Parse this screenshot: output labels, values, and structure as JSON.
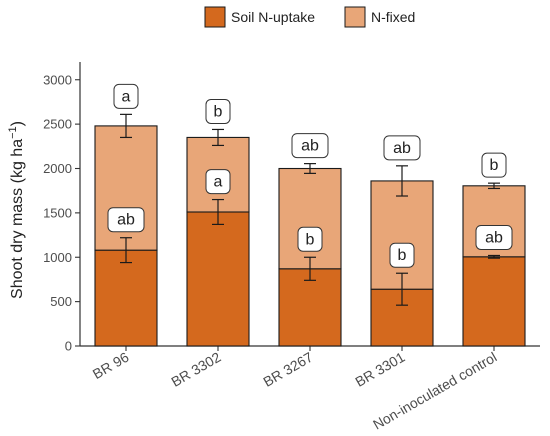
{
  "chart_data": {
    "type": "bar",
    "stacked": true,
    "categories": [
      "BR 96",
      "BR 3302",
      "BR 3267",
      "BR 3301",
      "Non-inoculated control"
    ],
    "ylabel": "Shoot dry mass (kg ha",
    "ylabel_sup": "−1",
    "ylabel_close": ")",
    "ylim": [
      0,
      3200
    ],
    "yticks": [
      0,
      500,
      1000,
      1500,
      2000,
      2500,
      3000
    ],
    "legend_position": "top",
    "series": [
      {
        "name": "Soil N-uptake",
        "color": "#d4691e",
        "values": [
          1080,
          1510,
          870,
          640,
          1005
        ],
        "error": [
          140,
          140,
          130,
          180,
          15
        ],
        "labels": [
          "ab",
          "a",
          "b",
          "b",
          "ab"
        ]
      },
      {
        "name": "N-fixed",
        "color": "#e8a678",
        "values": [
          1400,
          840,
          1130,
          1220,
          800
        ],
        "error": [
          130,
          90,
          55,
          170,
          30
        ],
        "labels": [
          "a",
          "b",
          "ab",
          "ab",
          "b"
        ]
      }
    ]
  }
}
